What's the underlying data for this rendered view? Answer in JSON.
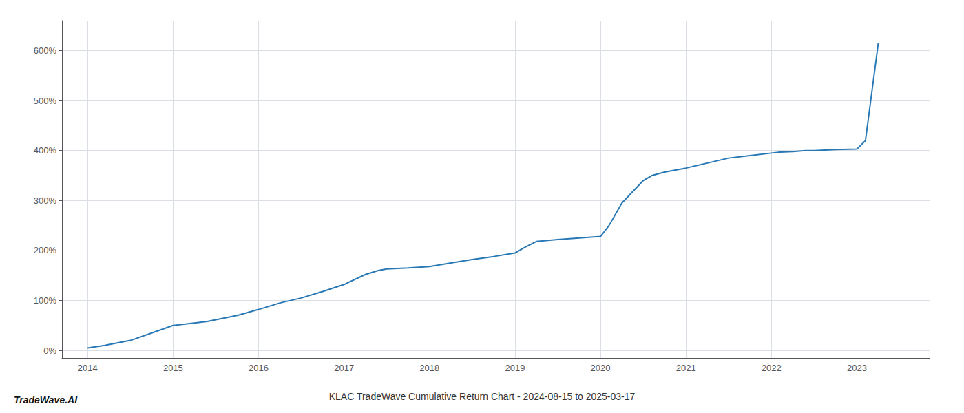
{
  "chart_data": {
    "type": "line",
    "title": "KLAC TradeWave Cumulative Return Chart - 2024-08-15 to 2025-03-17",
    "annotations": [
      "TradeWave.AI"
    ],
    "x": [
      2014.0,
      2014.2,
      2014.5,
      2014.75,
      2015.0,
      2015.25,
      2015.4,
      2015.6,
      2015.75,
      2016.0,
      2016.25,
      2016.5,
      2016.75,
      2017.0,
      2017.25,
      2017.4,
      2017.5,
      2017.75,
      2018.0,
      2018.25,
      2018.5,
      2018.75,
      2019.0,
      2019.1,
      2019.25,
      2019.5,
      2019.75,
      2020.0,
      2020.1,
      2020.25,
      2020.5,
      2020.6,
      2020.75,
      2021.0,
      2021.25,
      2021.5,
      2021.75,
      2022.0,
      2022.1,
      2022.25,
      2022.4,
      2022.5,
      2022.75,
      2023.0,
      2023.1,
      2023.25
    ],
    "values": [
      5,
      10,
      20,
      35,
      50,
      55,
      58,
      65,
      70,
      82,
      95,
      105,
      118,
      132,
      152,
      160,
      163,
      165,
      168,
      175,
      182,
      188,
      195,
      205,
      218,
      222,
      225,
      228,
      250,
      295,
      340,
      350,
      357,
      365,
      375,
      385,
      390,
      395,
      397,
      398,
      400,
      400,
      402,
      403,
      420,
      615
    ],
    "color": "#2878b5",
    "xlim": [
      2013.7,
      2023.85
    ],
    "xticks": [
      2014,
      2015,
      2016,
      2017,
      2018,
      2019,
      2020,
      2021,
      2022,
      2023
    ],
    "ylim": [
      -15,
      660
    ],
    "yticks": [
      {
        "value": 0,
        "label": "0%"
      },
      {
        "value": 100,
        "label": "100%"
      },
      {
        "value": 200,
        "label": "200%"
      },
      {
        "value": 300,
        "label": "300%"
      },
      {
        "value": 400,
        "label": "400%"
      },
      {
        "value": 500,
        "label": "500%"
      },
      {
        "value": 600,
        "label": "600%"
      }
    ],
    "grid": true
  }
}
